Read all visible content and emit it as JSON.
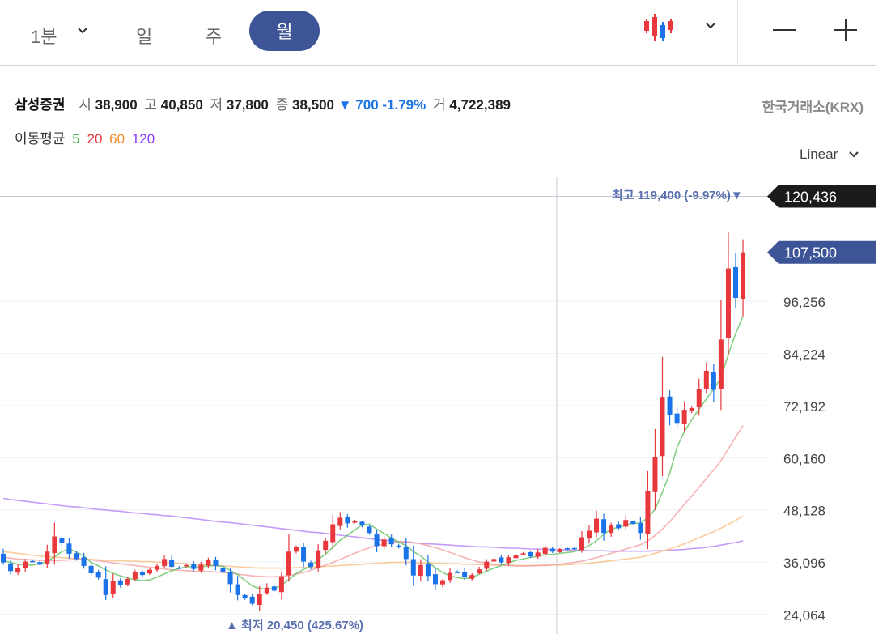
{
  "toolbar": {
    "interval": "1분",
    "tabs": [
      "일",
      "주",
      "월"
    ],
    "selected_tab": "월",
    "chart_type_icon": "candlestick-icon",
    "zoom_out_icon": "minus-icon",
    "zoom_in_icon": "plus-icon"
  },
  "info": {
    "name": "삼성증권",
    "open_label": "시",
    "open": "38,900",
    "high_label": "고",
    "high": "40,850",
    "low_label": "저",
    "low": "37,800",
    "close_label": "종",
    "close": "38,500",
    "change": "▼ 700 -1.79%",
    "volume_label": "거",
    "volume": "4,722,389",
    "exchange": "한국거래소(KRX)"
  },
  "moving_average": {
    "label": "이동평균",
    "periods": [
      {
        "value": "5",
        "color": "#2ca02c"
      },
      {
        "value": "20",
        "color": "#e8383d"
      },
      {
        "value": "60",
        "color": "#f28c28"
      },
      {
        "value": "120",
        "color": "#8a3ffc"
      }
    ]
  },
  "scale": "Linear",
  "chart_data": {
    "type": "candlestick",
    "y_ticks": [
      "24,064",
      "36,096",
      "48,128",
      "60,160",
      "72,192",
      "84,224",
      "96,256"
    ],
    "y_tick_values": [
      24064,
      36096,
      48128,
      60160,
      72192,
      84224,
      96256
    ],
    "ylim": [
      19500,
      126500
    ],
    "crosshair_label": "120,436",
    "crosshair_value": 120436,
    "current_price_label": "107,500",
    "current_price": 107500,
    "max_annotation": "최고 119,400 (-9.97%)▼",
    "max_value": 119400,
    "min_annotation": "▲ 최저 20,450 (425.67%)",
    "min_value": 20450,
    "up_color": "#e8383d",
    "down_color": "#1a73e8",
    "closes": [
      36000,
      34000,
      34800,
      36200,
      36300,
      35500,
      38500,
      42000,
      40600,
      38000,
      36800,
      35200,
      33500,
      32500,
      28500,
      31800,
      30800,
      32200,
      33800,
      33100,
      34300,
      35200,
      36800,
      35000,
      34800,
      35400,
      34500,
      35500,
      36500,
      35200,
      33800,
      31000,
      28500,
      27800,
      26500,
      28800,
      30200,
      29500,
      32800,
      38500,
      39600,
      36200,
      35000,
      38800,
      41000,
      44800,
      46300,
      45000,
      45500,
      44600,
      42800,
      39800,
      41300,
      40200,
      39500,
      36800,
      33000,
      35400,
      32900,
      31000,
      31900,
      33600,
      33800,
      32600,
      33100,
      34400,
      36200,
      36800,
      36000,
      37200,
      37700,
      38100,
      37400,
      38300,
      39400,
      38500,
      39100,
      39000,
      39100,
      41800,
      43300,
      46100,
      42800,
      44500,
      43900,
      45800,
      44900,
      42800,
      52500,
      60300,
      74200,
      70000,
      68000,
      71200,
      71600,
      76000,
      80200,
      75800,
      87400,
      103800,
      97000,
      107500
    ],
    "ma5": [
      36500,
      36000,
      35600,
      35500,
      35400,
      35700,
      36300,
      37300,
      38500,
      39100,
      38400,
      37500,
      36000,
      35200,
      34300,
      33500,
      32900,
      32400,
      32000,
      31800,
      32000,
      32600,
      33400,
      34100,
      34600,
      35000,
      35000,
      35000,
      35200,
      35300,
      35100,
      34200,
      33200,
      31900,
      30600,
      30000,
      29900,
      30000,
      30700,
      32100,
      33400,
      34400,
      35100,
      36700,
      37900,
      39500,
      41100,
      42300,
      43500,
      44700,
      44800,
      43700,
      42700,
      41600,
      40700,
      39900,
      38500,
      37500,
      36100,
      34800,
      33700,
      32900,
      32500,
      32300,
      32500,
      33300,
      34000,
      34700,
      35300,
      35900,
      36500,
      36800,
      37200,
      37400,
      37800,
      37900,
      38100,
      38300,
      38500,
      39100,
      39900,
      41000,
      42500,
      43700,
      44100,
      44700,
      45000,
      45100,
      46300,
      48300,
      52200,
      56600,
      62600,
      66200,
      68900,
      71400,
      73700,
      76000,
      78600,
      84000,
      88800,
      92800
    ],
    "ma20": [
      37200,
      37000,
      36800,
      36700,
      36600,
      36500,
      36400,
      36400,
      36500,
      36600,
      36700,
      36700,
      36600,
      36400,
      36200,
      35900,
      35700,
      35500,
      35300,
      35100,
      34900,
      34700,
      34500,
      34300,
      34200,
      34100,
      34000,
      33900,
      33900,
      33800,
      33700,
      33500,
      33300,
      33100,
      32900,
      32800,
      32700,
      32700,
      32800,
      33000,
      33300,
      33700,
      34200,
      34800,
      35400,
      36000,
      36700,
      37400,
      38100,
      38800,
      39400,
      39900,
      40300,
      40600,
      40800,
      40800,
      40600,
      40300,
      39900,
      39400,
      38900,
      38300,
      37700,
      37100,
      36600,
      36100,
      35800,
      35600,
      35400,
      35300,
      35200,
      35200,
      35200,
      35300,
      35400,
      35500,
      35600,
      35800,
      36000,
      36300,
      36700,
      37100,
      37600,
      38100,
      38600,
      39100,
      39600,
      40100,
      41000,
      42200,
      43700,
      45400,
      47400,
      49400,
      51300,
      53300,
      55400,
      57300,
      59500,
      62200,
      64900,
      67600
    ],
    "ma60": [
      38500,
      38300,
      38100,
      37900,
      37700,
      37500,
      37300,
      37200,
      37100,
      37000,
      36900,
      36800,
      36700,
      36600,
      36500,
      36400,
      36400,
      36300,
      36300,
      36200,
      36200,
      36100,
      36000,
      35900,
      35800,
      35700,
      35600,
      35500,
      35400,
      35300,
      35200,
      35100,
      35000,
      34900,
      34800,
      34700,
      34700,
      34700,
      34700,
      34700,
      34800,
      34800,
      34900,
      35000,
      35100,
      35200,
      35300,
      35400,
      35500,
      35600,
      35700,
      35800,
      35900,
      36000,
      36000,
      36000,
      36000,
      35900,
      35900,
      35800,
      35800,
      35700,
      35700,
      35600,
      35600,
      35500,
      35500,
      35400,
      35400,
      35400,
      35300,
      35300,
      35300,
      35300,
      35300,
      35400,
      35400,
      35500,
      35600,
      35700,
      35800,
      36000,
      36200,
      36400,
      36600,
      36800,
      37000,
      37200,
      37600,
      38100,
      38600,
      39100,
      39700,
      40300,
      41000,
      41700,
      42400,
      43100,
      43900,
      44800,
      45700,
      46700
    ],
    "ma120": [
      50800,
      50500,
      50300,
      50100,
      49900,
      49700,
      49500,
      49300,
      49100,
      48900,
      48800,
      48600,
      48400,
      48200,
      48100,
      47900,
      47800,
      47600,
      47400,
      47300,
      47100,
      47000,
      46800,
      46700,
      46500,
      46300,
      46100,
      45900,
      45700,
      45500,
      45300,
      45200,
      45000,
      44800,
      44600,
      44400,
      44200,
      44000,
      43800,
      43600,
      43400,
      43200,
      43000,
      42900,
      42700,
      42500,
      42300,
      42100,
      41900,
      41700,
      41500,
      41300,
      41100,
      41000,
      40800,
      40700,
      40500,
      40400,
      40300,
      40200,
      40100,
      40000,
      39900,
      39800,
      39700,
      39600,
      39600,
      39500,
      39400,
      39300,
      39300,
      39200,
      39100,
      39100,
      39000,
      39000,
      38900,
      38900,
      38800,
      38800,
      38700,
      38700,
      38700,
      38600,
      38600,
      38600,
      38600,
      38600,
      38600,
      38700,
      38700,
      38800,
      38900,
      39000,
      39200,
      39300,
      39500,
      39700,
      40000,
      40300,
      40600,
      41000
    ]
  }
}
